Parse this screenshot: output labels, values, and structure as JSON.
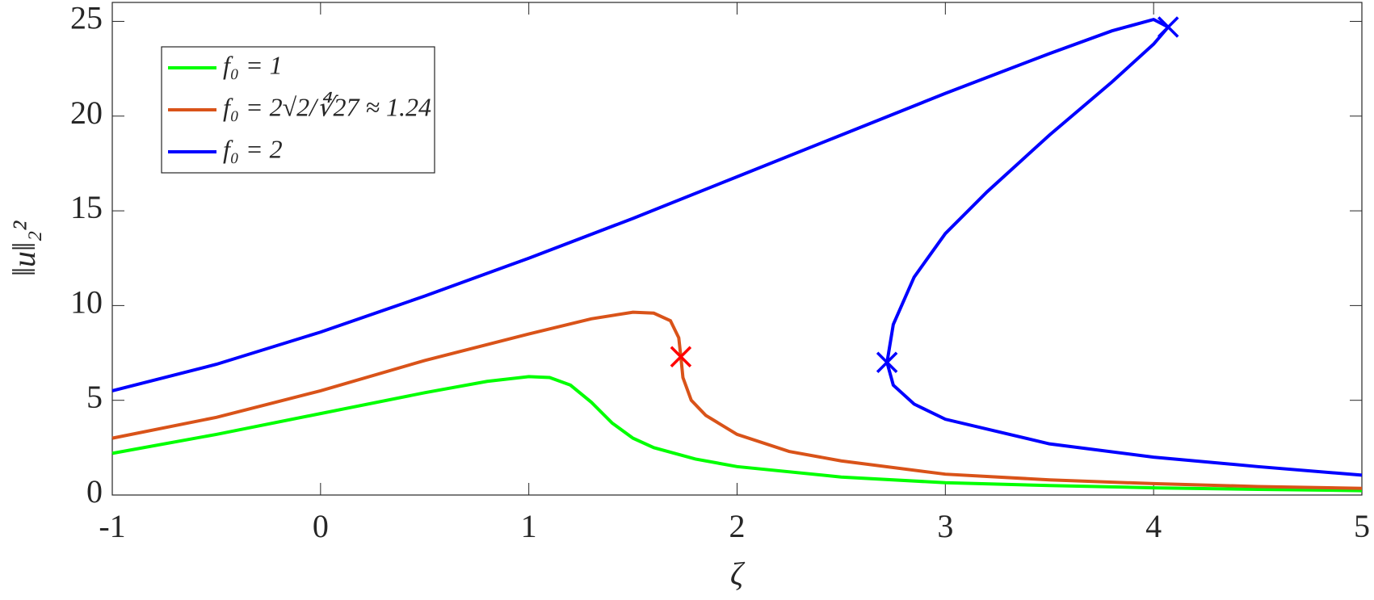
{
  "chart_data": {
    "type": "line",
    "xlabel": "ζ",
    "ylabel": "‖u‖₂²",
    "xlim": [
      -1,
      5
    ],
    "ylim": [
      0,
      26
    ],
    "xticks": [
      -1,
      0,
      1,
      2,
      3,
      4,
      5
    ],
    "yticks": [
      0,
      5,
      10,
      15,
      20,
      25
    ],
    "legend": "upper left",
    "series": [
      {
        "name": "f₀ = 1",
        "color": "#00ff00",
        "x": [
          -1,
          -0.5,
          0,
          0.5,
          0.8,
          1.0,
          1.1,
          1.2,
          1.3,
          1.4,
          1.5,
          1.6,
          1.8,
          2.0,
          2.5,
          3,
          3.5,
          4,
          4.5,
          5
        ],
        "values": [
          2.2,
          3.2,
          4.3,
          5.4,
          6.0,
          6.25,
          6.2,
          5.8,
          4.9,
          3.8,
          3.0,
          2.5,
          1.9,
          1.5,
          0.95,
          0.65,
          0.5,
          0.38,
          0.3,
          0.23
        ]
      },
      {
        "name": "f₀ = 2√2/∜27 ≈ 1.24",
        "color": "#d95319",
        "x": [
          -1,
          -0.5,
          0,
          0.5,
          1.0,
          1.3,
          1.5,
          1.6,
          1.68,
          1.72,
          1.73,
          1.74,
          1.78,
          1.85,
          2,
          2.25,
          2.5,
          3,
          3.5,
          4,
          4.5,
          5
        ],
        "values": [
          3.0,
          4.1,
          5.5,
          7.1,
          8.5,
          9.3,
          9.65,
          9.6,
          9.2,
          8.3,
          7.3,
          6.2,
          5.0,
          4.2,
          3.2,
          2.3,
          1.8,
          1.1,
          0.8,
          0.6,
          0.45,
          0.35
        ]
      },
      {
        "name": "f₀ = 2",
        "color": "#0000ff",
        "x": [
          -1,
          -0.5,
          0,
          0.5,
          1,
          1.5,
          2,
          2.5,
          3,
          3.5,
          3.8,
          4.0,
          4.07,
          4.0,
          3.8,
          3.5,
          3.2,
          3.0,
          2.85,
          2.75,
          2.72,
          2.75,
          2.85,
          3.0,
          3.5,
          4,
          4.5,
          5
        ],
        "values": [
          5.5,
          6.9,
          8.6,
          10.5,
          12.5,
          14.6,
          16.8,
          19.0,
          21.2,
          23.3,
          24.5,
          25.1,
          24.7,
          23.8,
          21.8,
          19.0,
          16.0,
          13.8,
          11.5,
          9.0,
          7.0,
          5.8,
          4.8,
          4.0,
          2.7,
          2.0,
          1.5,
          1.05
        ]
      }
    ],
    "markers": {
      "x": [
        1.73,
        2.72,
        4.07
      ],
      "values": [
        7.3,
        7.0,
        24.7
      ],
      "colors": [
        "#ff0000",
        "#0000ff",
        "#0000ff"
      ]
    }
  }
}
